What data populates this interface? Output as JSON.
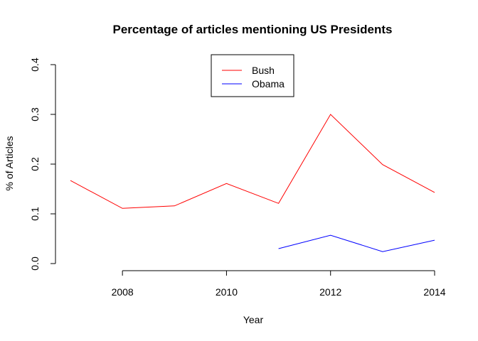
{
  "chart_data": {
    "type": "line",
    "title": "Percentage of articles mentioning US Presidents",
    "xlabel": "Year",
    "ylabel": "% of Articles",
    "xlim": [
      2007,
      2014
    ],
    "ylim": [
      0,
      0.4
    ],
    "xticks": [
      2008,
      2010,
      2012,
      2014
    ],
    "yticks": [
      0.0,
      0.1,
      0.2,
      0.3,
      0.4
    ],
    "xtick_labels": [
      "2008",
      "2010",
      "2012",
      "2014"
    ],
    "ytick_labels": [
      "0.0",
      "0.1",
      "0.2",
      "0.3",
      "0.4"
    ],
    "grid": false,
    "legend_position": "top-center",
    "series": [
      {
        "name": "Bush",
        "color": "#ff0000",
        "x": [
          2007,
          2008,
          2009,
          2010,
          2011,
          2012,
          2013,
          2014
        ],
        "y": [
          0.167,
          0.111,
          0.116,
          0.161,
          0.121,
          0.3,
          0.199,
          0.143
        ]
      },
      {
        "name": "Obama",
        "color": "#0000ff",
        "x": [
          2011,
          2012,
          2013,
          2014
        ],
        "y": [
          0.03,
          0.057,
          0.024,
          0.047
        ]
      }
    ]
  }
}
